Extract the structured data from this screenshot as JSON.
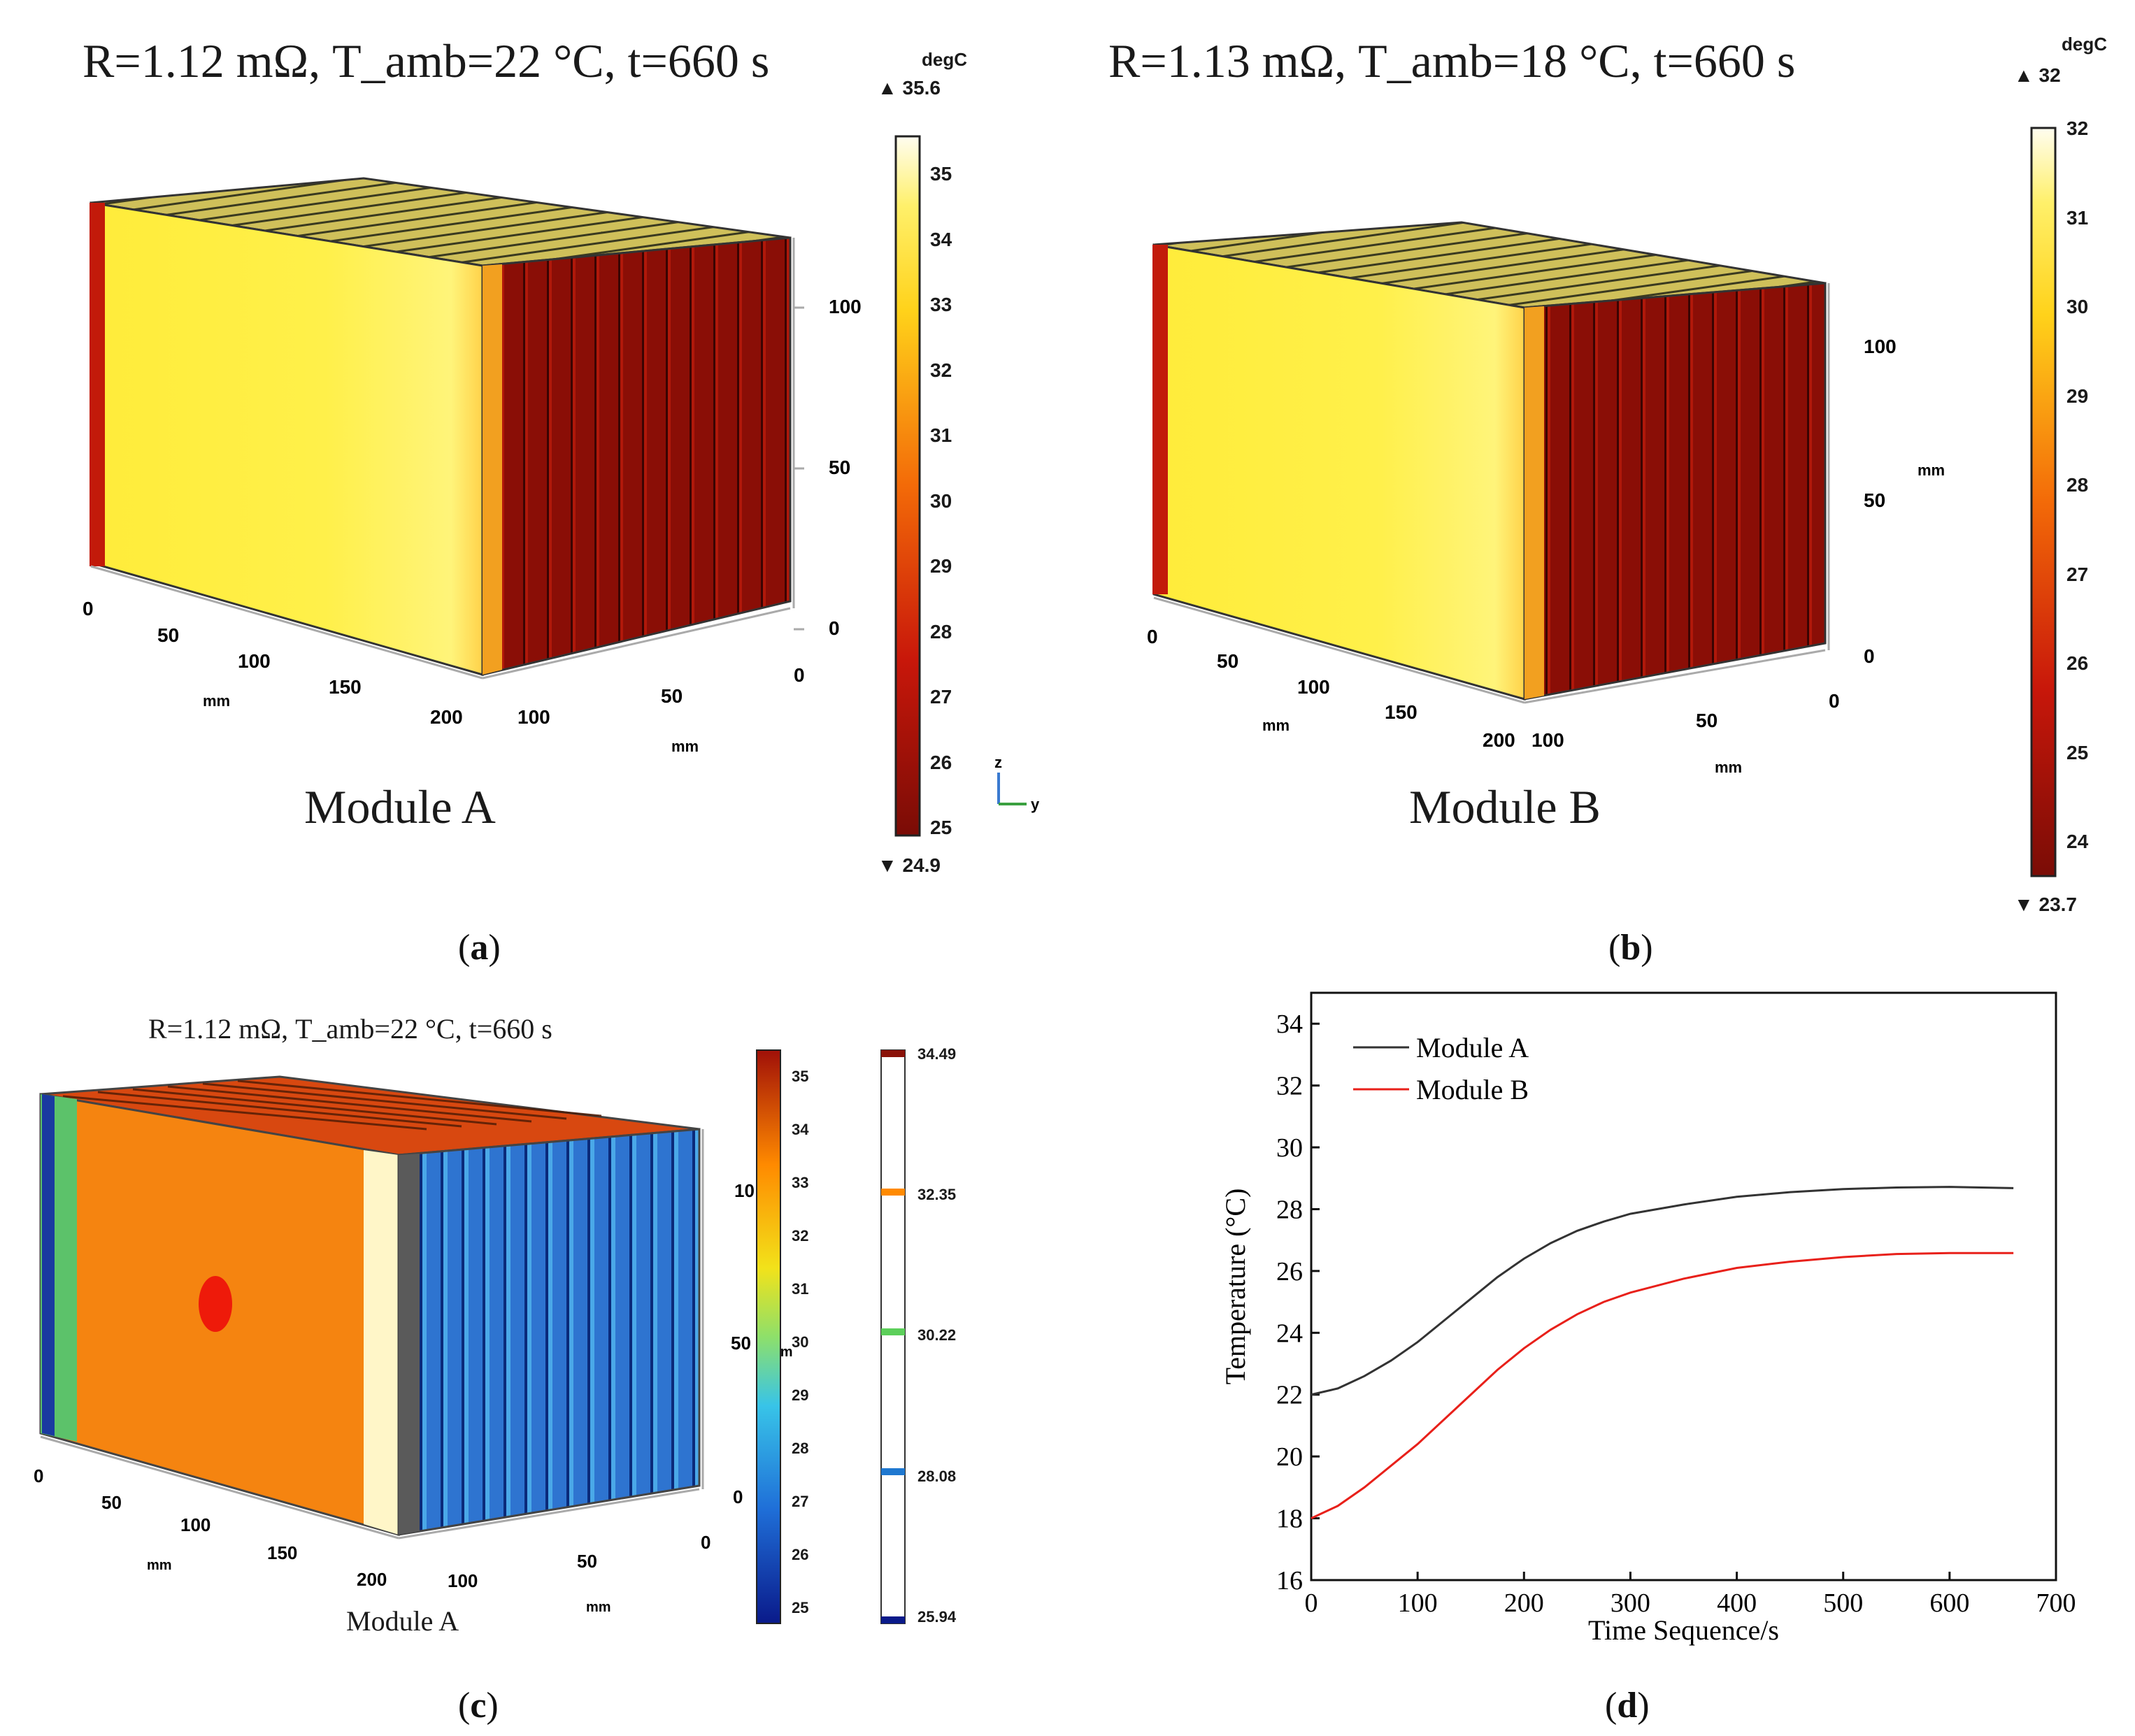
{
  "panels": {
    "a": {
      "label_open": "(",
      "label_letter": "a",
      "label_close": ")",
      "title": "R=1.12 mΩ, T_amb=22 °C, t=660 s",
      "module_label": "Module A",
      "unit": "degC",
      "max_marker": "▲ 35.6",
      "min_marker": "▼ 24.9",
      "colorbar_ticks": [
        "35",
        "34",
        "33",
        "32",
        "31",
        "30",
        "29",
        "28",
        "27",
        "26",
        "25"
      ],
      "axis_x_ticks": [
        "0",
        "50",
        "100",
        "150",
        "200"
      ],
      "axis_y_ticks": [
        "100",
        "50",
        "0"
      ],
      "axis_z_ticks": [
        "100",
        "50",
        "0"
      ],
      "axis_x_unit": "mm",
      "axis_y_unit": "mm",
      "triad_z": "z",
      "triad_y": "y"
    },
    "b": {
      "label_open": "(",
      "label_letter": "b",
      "label_close": ")",
      "title": "R=1.13 mΩ, T_amb=18 °C, t=660 s",
      "module_label": "Module B",
      "unit": "degC",
      "max_marker": "▲ 32",
      "min_marker": "▼ 23.7",
      "colorbar_ticks": [
        "32",
        "31",
        "30",
        "29",
        "28",
        "27",
        "26",
        "25",
        "24"
      ],
      "axis_x_ticks": [
        "0",
        "50",
        "100",
        "150",
        "200"
      ],
      "axis_y_ticks": [
        "100",
        "50",
        "0"
      ],
      "axis_z_ticks": [
        "100",
        "50",
        "0"
      ],
      "axis_x_unit": "mm",
      "axis_y_unit": "mm",
      "axis_z_unit": "mm"
    },
    "c": {
      "label_open": "(",
      "label_letter": "c",
      "label_close": ")",
      "title": "R=1.12 mΩ, T_amb=22 °C, t=660 s",
      "module_label": "Module A",
      "colorbar_ticks": [
        "35",
        "34",
        "33",
        "32",
        "31",
        "30",
        "29",
        "28",
        "27",
        "26",
        "25"
      ],
      "legend_levels": [
        "34.49",
        "32.35",
        "30.22",
        "28.08",
        "25.94"
      ],
      "axis_x_ticks": [
        "0",
        "50",
        "100",
        "150",
        "200"
      ],
      "axis_y_ticks": [
        "100",
        "50",
        "0"
      ],
      "axis_z_ticks": [
        "10",
        "50",
        "0"
      ],
      "axis_x_unit": "mm",
      "axis_y_unit": "mm",
      "axis_z_unit": "mm"
    },
    "d": {
      "label_open": "(",
      "label_letter": "d",
      "label_close": ")"
    }
  },
  "colors": {
    "heat_dark": "#7a0c06",
    "heat_red": "#d01a0a",
    "heat_yellow": "#ffe600",
    "heat_white": "#fffbe8",
    "jet_blue": "#2255c8",
    "jet_orange": "#ff8a00",
    "series_a": "#333333",
    "series_b": "#e8201a"
  },
  "chart_data": {
    "type": "line",
    "title": "",
    "xlabel": "Time Sequence/s",
    "ylabel": "Temperature (°C)",
    "xlim": [
      0,
      700
    ],
    "ylim": [
      16,
      35
    ],
    "xticks": [
      0,
      100,
      200,
      300,
      400,
      500,
      600,
      700
    ],
    "yticks": [
      16,
      18,
      20,
      22,
      24,
      26,
      28,
      30,
      32,
      34
    ],
    "legend_position": "top-left",
    "series": [
      {
        "name": "Module A",
        "color": "#333333",
        "x": [
          0,
          25,
          50,
          75,
          100,
          125,
          150,
          175,
          200,
          225,
          250,
          275,
          300,
          350,
          400,
          450,
          500,
          550,
          600,
          660
        ],
        "y": [
          22.0,
          22.2,
          22.6,
          23.1,
          23.7,
          24.4,
          25.1,
          25.8,
          26.4,
          26.9,
          27.3,
          27.6,
          27.85,
          28.15,
          28.4,
          28.55,
          28.65,
          28.7,
          28.72,
          28.68
        ]
      },
      {
        "name": "Module B",
        "color": "#e8201a",
        "x": [
          0,
          25,
          50,
          75,
          100,
          125,
          150,
          175,
          200,
          225,
          250,
          275,
          300,
          350,
          400,
          450,
          500,
          550,
          600,
          660
        ],
        "y": [
          18.0,
          18.4,
          19.0,
          19.7,
          20.4,
          21.2,
          22.0,
          22.8,
          23.5,
          24.1,
          24.6,
          25.0,
          25.3,
          25.75,
          26.1,
          26.3,
          26.45,
          26.55,
          26.58,
          26.58
        ]
      }
    ]
  }
}
